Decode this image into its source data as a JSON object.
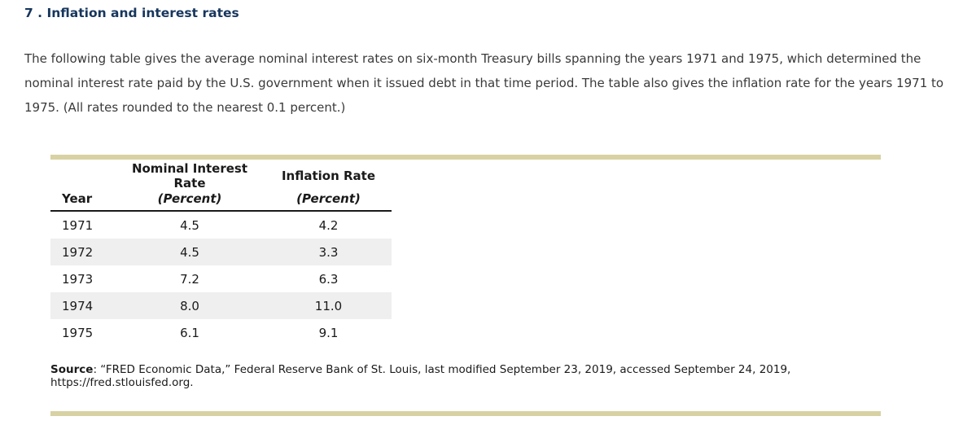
{
  "page": {
    "title": "7 . Inflation and interest rates",
    "description": "The following table gives the average nominal interest rates on six-month Treasury bills spanning the years 1971 and 1975, which determined the nominal interest rate paid by the U.S. government when it issued debt in that time period. The table also gives the inflation rate for the years 1971 to 1975. (All rates rounded to the nearest 0.1 percent.)"
  },
  "table": {
    "header": {
      "year": "Year",
      "nominal_line1": "Nominal Interest Rate",
      "nominal_line2": "(Percent)",
      "inflation_line1": "Inflation Rate",
      "inflation_line2": "(Percent)"
    },
    "rows": [
      {
        "year": "1971",
        "nominal": "4.5",
        "inflation": "4.2"
      },
      {
        "year": "1972",
        "nominal": "4.5",
        "inflation": "3.3"
      },
      {
        "year": "1973",
        "nominal": "7.2",
        "inflation": "6.3"
      },
      {
        "year": "1974",
        "nominal": "8.0",
        "inflation": "11.0"
      },
      {
        "year": "1975",
        "nominal": "6.1",
        "inflation": "9.1"
      }
    ]
  },
  "source": {
    "label": "Source",
    "text": ": “FRED Economic Data,” Federal Reserve Bank of St. Louis, last modified September 23, 2019, accessed September 24, 2019, https://fred.stlouisfed.org."
  },
  "colors": {
    "title": "#17365d",
    "divider_rule": "#d8d1a3",
    "row_stripe": "#efefef",
    "body_text": "#3a3a3a"
  },
  "chart_data": {
    "type": "table",
    "title": "Nominal interest rates and inflation, 1971-1975",
    "categories": [
      "1971",
      "1972",
      "1973",
      "1974",
      "1975"
    ],
    "series": [
      {
        "name": "Nominal Interest Rate (Percent)",
        "values": [
          4.5,
          4.5,
          7.2,
          8.0,
          6.1
        ]
      },
      {
        "name": "Inflation Rate (Percent)",
        "values": [
          4.2,
          3.3,
          6.3,
          11.0,
          9.1
        ]
      }
    ]
  }
}
